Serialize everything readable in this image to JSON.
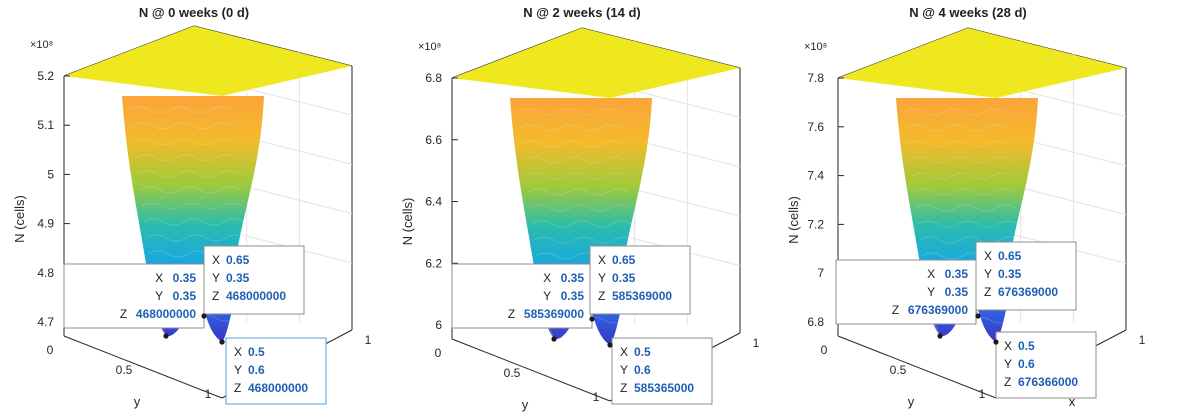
{
  "chart_data": [
    {
      "type": "surface",
      "title": "N @ 0 weeks (0 d)",
      "zlabel": "N (cells)",
      "ylabel": "y",
      "xlabel": "",
      "z_exponent": "×10⁸",
      "zlim": [
        4.7,
        5.2
      ],
      "zticks": [
        "4.7",
        "4.8",
        "4.9",
        "5",
        "5.1",
        "5.2"
      ],
      "yticks": [
        "0",
        "0.5",
        "1"
      ],
      "xticks": [
        "1"
      ],
      "surface_top_color": "#f0e81e",
      "datatips": [
        {
          "X": "0.35",
          "Y": "0.35",
          "Z": "468000000"
        },
        {
          "X": "0.65",
          "Y": "0.35",
          "Z": "468000000"
        },
        {
          "X": "0.5",
          "Y": "0.6",
          "Z": "468000000"
        }
      ]
    },
    {
      "type": "surface",
      "title": "N @ 2 weeks (14 d)",
      "zlabel": "N (cells)",
      "ylabel": "y",
      "xlabel": "",
      "z_exponent": "×10⁸",
      "zlim": [
        5.9,
        6.9
      ],
      "zticks": [
        "6",
        "6.2",
        "6.4",
        "6.6",
        "6.8"
      ],
      "yticks": [
        "0",
        "0.5",
        "1"
      ],
      "xticks": [
        "1"
      ],
      "surface_top_color": "#f0e81e",
      "datatips": [
        {
          "X": "0.35",
          "Y": "0.35",
          "Z": "585369000"
        },
        {
          "X": "0.65",
          "Y": "0.35",
          "Z": "585369000"
        },
        {
          "X": "0.5",
          "Y": "0.6",
          "Z": "585365000"
        }
      ]
    },
    {
      "type": "surface",
      "title": "N @ 4 weeks (28 d)",
      "zlabel": "N (cells)",
      "ylabel": "y",
      "xlabel": "x",
      "z_exponent": "×10⁸",
      "zlim": [
        6.8,
        7.8
      ],
      "zticks": [
        "6.8",
        "7",
        "7.2",
        "7.4",
        "7.6",
        "7.8"
      ],
      "yticks": [
        "0",
        "0.5",
        "1"
      ],
      "xticks": [
        "1"
      ],
      "surface_top_color": "#f0e81e",
      "datatips": [
        {
          "X": "0.35",
          "Y": "0.35",
          "Z": "676369000"
        },
        {
          "X": "0.65",
          "Y": "0.35",
          "Z": "676369000"
        },
        {
          "X": "0.5",
          "Y": "0.6",
          "Z": "676366000"
        }
      ]
    }
  ]
}
